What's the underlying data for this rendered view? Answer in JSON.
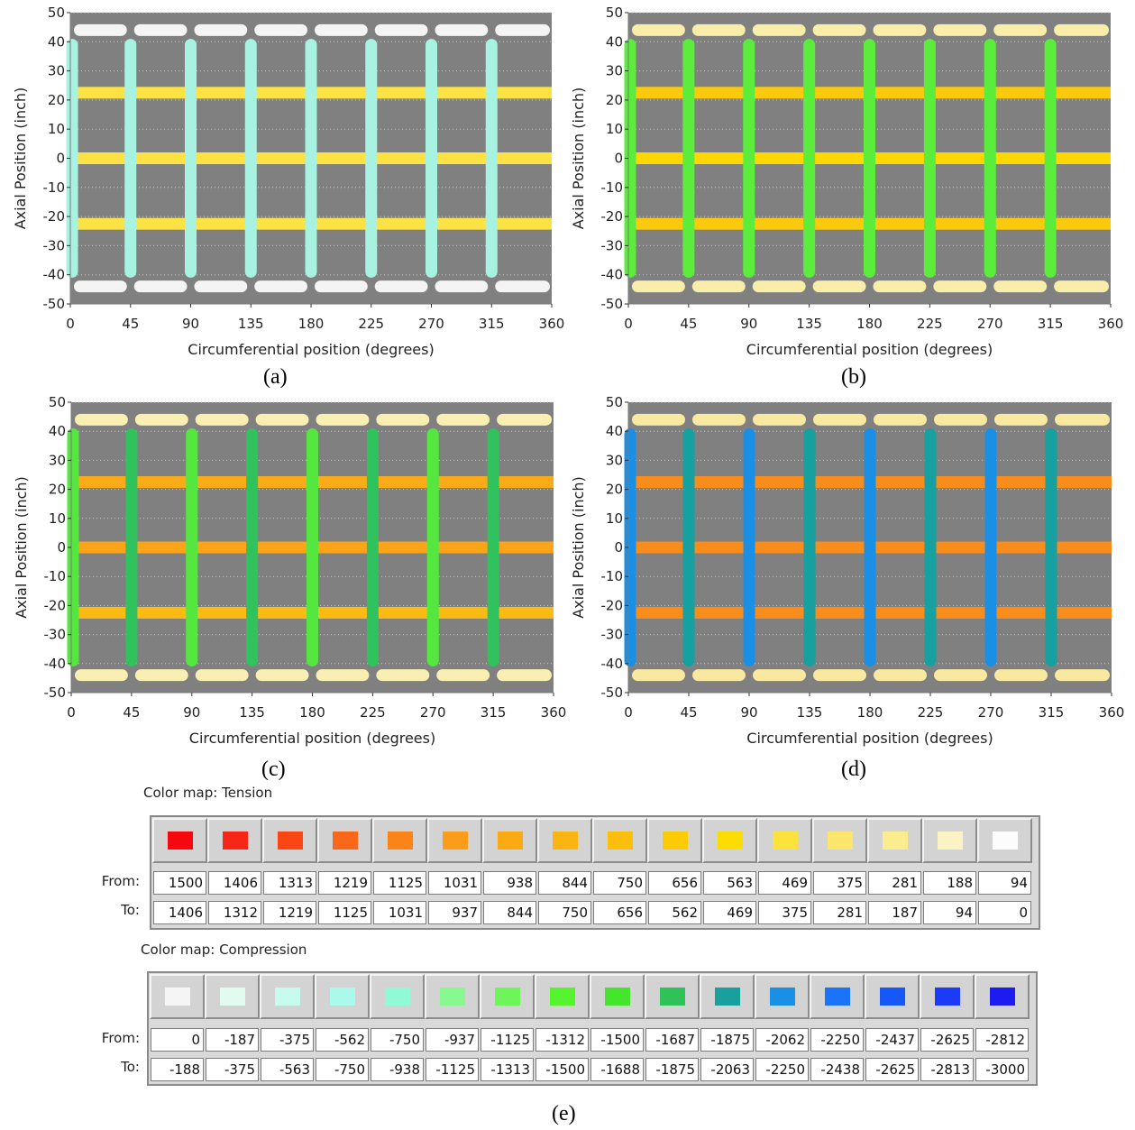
{
  "panels": [
    {
      "id": "a",
      "caption": "(a)",
      "ylabel": "Axial Position (inch)",
      "xlabel": "Circumferential position (degrees)"
    },
    {
      "id": "b",
      "caption": "(b)",
      "ylabel": "Axial Position (inch)",
      "xlabel": "Circumferential position (degrees)"
    },
    {
      "id": "c",
      "caption": "(c)",
      "ylabel": "Axial Position (inch)",
      "xlabel": "Circumferential position (degrees)"
    },
    {
      "id": "d",
      "caption": "(d)",
      "ylabel": "Axial Position (inch)",
      "xlabel": "Circumferential position (degrees)"
    }
  ],
  "chart_data": [
    {
      "type": "scatter",
      "panel": "a",
      "xlabel": "Circumferential position (degrees)",
      "ylabel": "Axial Position (inch)",
      "xlim": [
        0,
        360
      ],
      "ylim": [
        -50,
        50
      ],
      "x_ticks": [
        0,
        45,
        90,
        135,
        180,
        225,
        270,
        315,
        360
      ],
      "y_ticks": [
        50,
        40,
        30,
        20,
        10,
        0,
        -10,
        -20,
        -30,
        -40,
        -50
      ],
      "hoops_y": [
        44,
        22.5,
        0,
        -22.5,
        -44
      ],
      "stiffeners_x": [
        0,
        45,
        90,
        135,
        180,
        225,
        270,
        315
      ],
      "hoop_colors": [
        "#f4f4f4",
        "#fde244",
        "#fde244",
        "#fde244",
        "#f4f4f4"
      ],
      "stiffener_colors": [
        "#a8f2e2"
      ],
      "background": "#808080",
      "grid": true
    },
    {
      "type": "scatter",
      "panel": "b",
      "xlabel": "Circumferential position (degrees)",
      "ylabel": "Axial Position (inch)",
      "xlim": [
        0,
        360
      ],
      "ylim": [
        -50,
        50
      ],
      "x_ticks": [
        0,
        45,
        90,
        135,
        180,
        225,
        270,
        315,
        360
      ],
      "y_ticks": [
        50,
        40,
        30,
        20,
        10,
        0,
        -10,
        -20,
        -30,
        -40,
        -50
      ],
      "hoops_y": [
        44,
        22.5,
        0,
        -22.5,
        -44
      ],
      "stiffeners_x": [
        0,
        45,
        90,
        135,
        180,
        225,
        270,
        315
      ],
      "hoop_colors": [
        "#f8eeaa",
        "#fcca0c",
        "#fcd800",
        "#fcca0c",
        "#f8eeaa"
      ],
      "stiffener_colors": [
        "#5cec3c"
      ],
      "background": "#808080",
      "grid": true
    },
    {
      "type": "scatter",
      "panel": "c",
      "xlabel": "Circumferential position (degrees)",
      "ylabel": "Axial Position (inch)",
      "xlim": [
        0,
        360
      ],
      "ylim": [
        -50,
        50
      ],
      "x_ticks": [
        0,
        45,
        90,
        135,
        180,
        225,
        270,
        315,
        360
      ],
      "y_ticks": [
        50,
        40,
        30,
        20,
        10,
        0,
        -10,
        -20,
        -30,
        -40,
        -50
      ],
      "hoops_y": [
        44,
        22.5,
        0,
        -22.5,
        -44
      ],
      "stiffeners_x": [
        0,
        45,
        90,
        135,
        180,
        225,
        270,
        315
      ],
      "hoop_colors": [
        "#faefb2",
        "#fbab18",
        "#fba418",
        "#fbbb12",
        "#faefb2"
      ],
      "stiffener_colors": [
        "#55e640",
        "#2fc25d"
      ],
      "background": "#808080",
      "grid": true
    },
    {
      "type": "scatter",
      "panel": "d",
      "xlabel": "Circumferential position (degrees)",
      "ylabel": "Axial Position (inch)",
      "xlim": [
        0,
        360
      ],
      "ylim": [
        -50,
        50
      ],
      "x_ticks": [
        0,
        45,
        90,
        135,
        180,
        225,
        270,
        315,
        360
      ],
      "y_ticks": [
        50,
        40,
        30,
        20,
        10,
        0,
        -10,
        -20,
        -30,
        -40,
        -50
      ],
      "hoops_y": [
        44,
        22.5,
        0,
        -22.5,
        -44
      ],
      "stiffeners_x": [
        0,
        45,
        90,
        135,
        180,
        225,
        270,
        315
      ],
      "hoop_colors": [
        "#f9e8a0",
        "#f98d1c",
        "#f98d1c",
        "#f98d1c",
        "#f9e8a0"
      ],
      "stiffener_colors": [
        "#1a8fe6",
        "#16a0a0"
      ],
      "background": "#808080",
      "grid": true
    }
  ],
  "tension_map": {
    "title": "Color map: Tension",
    "from_label": "From:",
    "to_label": "To:",
    "colors": [
      "#f5090e",
      "#f72718",
      "#f94614",
      "#f96818",
      "#fb8419",
      "#fb9c1a",
      "#fbaa14",
      "#fbb512",
      "#fbbf0a",
      "#fbcc06",
      "#fbdd02",
      "#fbe23c",
      "#fbe56a",
      "#fbec8e",
      "#fbf3c4",
      "#fcfcfc"
    ],
    "from": [
      "1500",
      "1406",
      "1313",
      "1219",
      "1125",
      "1031",
      "938",
      "844",
      "750",
      "656",
      "563",
      "469",
      "375",
      "281",
      "188",
      "94"
    ],
    "to": [
      "1406",
      "1312",
      "1219",
      "1125",
      "1031",
      "937",
      "844",
      "750",
      "656",
      "562",
      "469",
      "375",
      "281",
      "187",
      "94",
      "0"
    ]
  },
  "compression_map": {
    "title": "Color map: Compression",
    "from_label": "From:",
    "to_label": "To:",
    "colors": [
      "#f5f5f5",
      "#e2fbf1",
      "#c6fbee",
      "#aaf9eb",
      "#90f9d6",
      "#88f991",
      "#6ef55a",
      "#56f42e",
      "#44e52c",
      "#2ec258",
      "#199f9c",
      "#1a8fe6",
      "#1a73f8",
      "#1657f9",
      "#1c3bf9",
      "#1c1cf1"
    ],
    "from": [
      "0",
      "-187",
      "-375",
      "-562",
      "-750",
      "-937",
      "-1125",
      "-1312",
      "-1500",
      "-1687",
      "-1875",
      "-2062",
      "-2250",
      "-2437",
      "-2625",
      "-2812"
    ],
    "to": [
      "-188",
      "-375",
      "-563",
      "-750",
      "-938",
      "-1125",
      "-1313",
      "-1500",
      "-1688",
      "-1875",
      "-2063",
      "-2250",
      "-2438",
      "-2625",
      "-2813",
      "-3000"
    ]
  },
  "caption_e": "(e)"
}
